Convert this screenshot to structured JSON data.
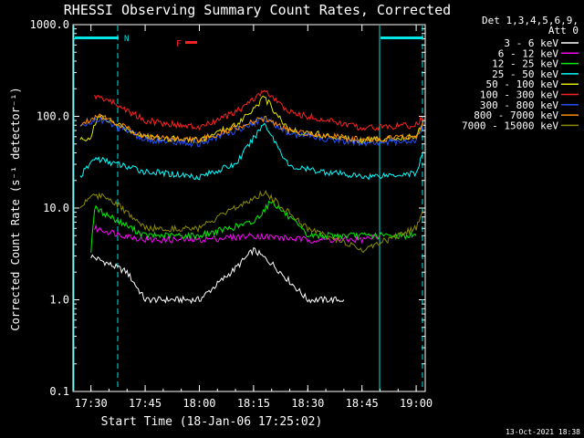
{
  "chart_data": {
    "type": "line",
    "title": "RHESSI Observing Summary Count Rates, Corrected",
    "xlabel": "Start Time (18-Jan-06 17:25:02)",
    "ylabel": "Corrected Count Rate (s⁻¹ detector⁻¹)",
    "y_scale": "log",
    "ylim": [
      0.1,
      1000.0
    ],
    "xlim": [
      "17:25:02",
      "19:02:30"
    ],
    "y_ticks": [
      "0.1",
      "1.0",
      "10.0",
      "100.0",
      "1000.0"
    ],
    "x_ticks": [
      "17:30",
      "17:45",
      "18:00",
      "18:15",
      "18:30",
      "18:45",
      "19:00"
    ],
    "legend_header": [
      "Det 1,3,4,5,6,9,",
      "Att 0"
    ],
    "legend_position": "right",
    "flags": {
      "night_label": "N",
      "flare_label": "F",
      "night_color": "#00e5e5",
      "flare_color": "#ff2020"
    },
    "footer_date": "13-Oct-2021 18:38",
    "series": [
      {
        "name": "3 - 6 keV",
        "color": "#ffffff",
        "x": [
          "17:30",
          "17:40",
          "17:45",
          "18:00",
          "18:10",
          "18:15",
          "18:20",
          "18:30",
          "18:40"
        ],
        "y": [
          3,
          2.0,
          1.0,
          1.0,
          2.2,
          3.5,
          2.5,
          1.0,
          1.0
        ]
      },
      {
        "name": "6 - 12 keV",
        "color": "#ff00ff",
        "x": [
          "17:31",
          "17:45",
          "18:00",
          "18:15",
          "18:30",
          "18:45",
          "18:50"
        ],
        "y": [
          6,
          4.5,
          4.5,
          5.0,
          4.5,
          4.5,
          5
        ]
      },
      {
        "name": "12 - 25 keV",
        "color": "#00ee00",
        "x": [
          "17:30",
          "17:31",
          "17:45",
          "18:00",
          "18:15",
          "18:20",
          "18:30",
          "18:45",
          "19:00"
        ],
        "y": [
          3.5,
          10,
          5,
          5,
          7,
          12,
          5,
          5,
          5
        ]
      },
      {
        "name": "25 - 50 keV",
        "color": "#00ffff",
        "x": [
          "17:27",
          "17:31",
          "17:45",
          "18:00",
          "18:10",
          "18:18",
          "18:25",
          "18:45",
          "19:00",
          "19:02"
        ],
        "y": [
          22,
          35,
          25,
          22,
          30,
          85,
          28,
          22,
          24,
          42
        ]
      },
      {
        "name": "50 - 100 keV",
        "color": "#e5e500",
        "x": [
          "17:27",
          "17:30",
          "17:32",
          "17:45",
          "18:00",
          "18:10",
          "18:18",
          "18:25",
          "18:45",
          "19:00",
          "19:02"
        ],
        "y": [
          55,
          60,
          100,
          60,
          55,
          80,
          160,
          70,
          55,
          60,
          90
        ]
      },
      {
        "name": "100 - 300 keV",
        "color": "#ff2020",
        "x": [
          "17:31",
          "17:35",
          "17:45",
          "18:00",
          "18:10",
          "18:18",
          "18:25",
          "18:45",
          "19:00",
          "19:02"
        ],
        "y": [
          165,
          150,
          90,
          75,
          110,
          190,
          110,
          75,
          80,
          100
        ]
      },
      {
        "name": "300 - 800 keV",
        "color": "#2050ff",
        "x": [
          "17:27",
          "17:32",
          "17:45",
          "18:00",
          "18:10",
          "18:18",
          "18:25",
          "18:45",
          "19:00",
          "19:02"
        ],
        "y": [
          75,
          95,
          55,
          50,
          70,
          95,
          65,
          50,
          55,
          85
        ]
      },
      {
        "name": "800 - 7000 keV",
        "color": "#ff8c00",
        "x": [
          "17:27",
          "17:32",
          "17:45",
          "18:00",
          "18:10",
          "18:18",
          "18:25",
          "18:45",
          "19:00",
          "19:02"
        ],
        "y": [
          80,
          105,
          60,
          55,
          75,
          95,
          70,
          55,
          60,
          90
        ]
      },
      {
        "name": "7000 - 15000 keV",
        "color": "#8b8b00",
        "x": [
          "17:27",
          "17:30",
          "17:35",
          "17:45",
          "18:00",
          "18:10",
          "18:18",
          "18:30",
          "18:45",
          "19:00",
          "19:02"
        ],
        "y": [
          10,
          14,
          13,
          6,
          6,
          10,
          15,
          6,
          3.5,
          6,
          9.5
        ]
      }
    ]
  }
}
